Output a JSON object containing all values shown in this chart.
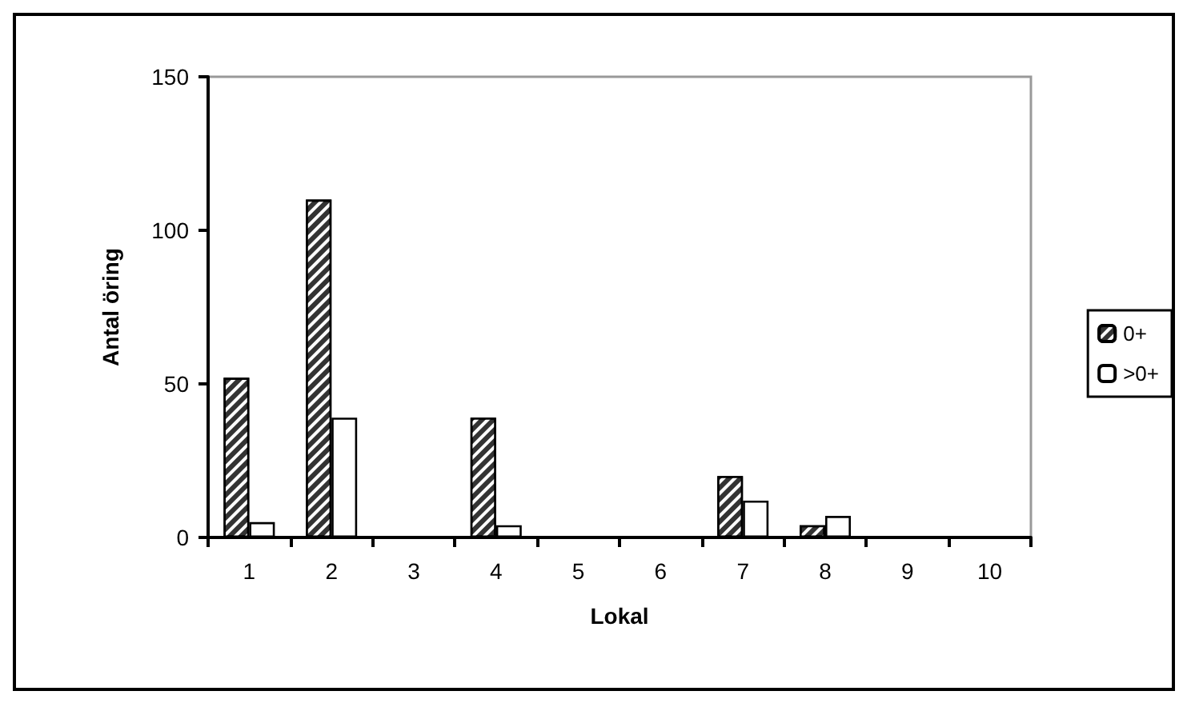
{
  "chart_data": {
    "type": "bar",
    "xlabel": "Lokal",
    "ylabel": "Antal öring",
    "categories": [
      "1",
      "2",
      "3",
      "4",
      "5",
      "6",
      "7",
      "8",
      "9",
      "10"
    ],
    "series": [
      {
        "name": "0+",
        "color": "#333333",
        "values": [
          52,
          110,
          0,
          39,
          0,
          0,
          20,
          4,
          0,
          0
        ]
      },
      {
        "name": ">0+",
        "color": "#ffffff",
        "values": [
          5,
          39,
          0,
          4,
          0,
          0,
          12,
          7,
          0,
          0
        ]
      }
    ],
    "ylim": [
      0,
      150
    ],
    "yticks": [
      0,
      50,
      100,
      150
    ],
    "grid": false,
    "legend": "right"
  }
}
